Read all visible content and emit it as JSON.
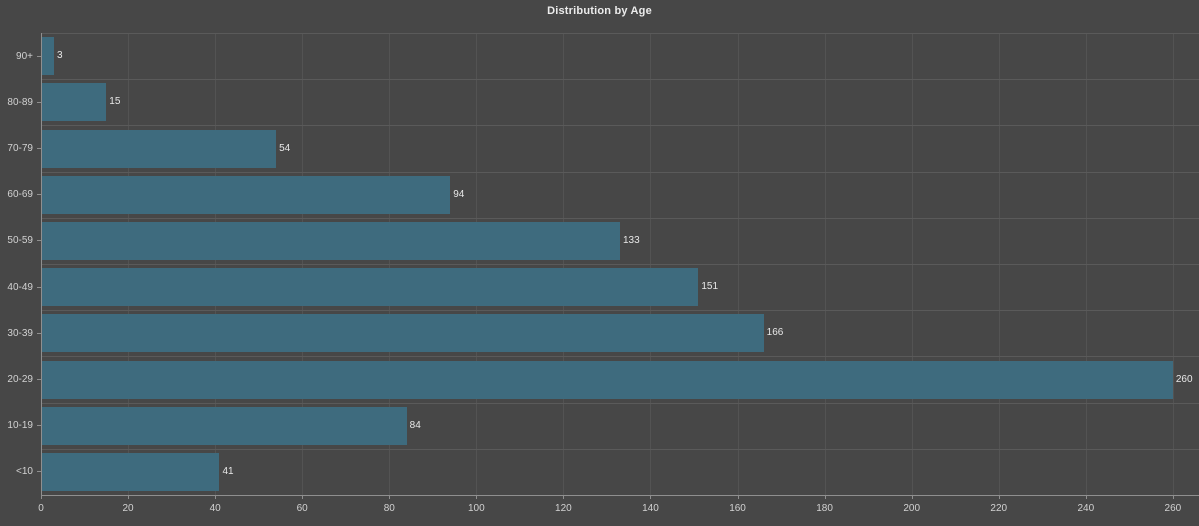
{
  "chart_data": {
    "type": "bar",
    "orientation": "horizontal",
    "title": "Distribution by Age",
    "categories": [
      "90+",
      "80-89",
      "70-79",
      "60-69",
      "50-59",
      "40-49",
      "30-39",
      "20-29",
      "10-19",
      "<10"
    ],
    "values": [
      3,
      15,
      54,
      94,
      133,
      151,
      166,
      260,
      84,
      41
    ],
    "value_labels": [
      "3",
      "15",
      "54",
      "94",
      "133",
      "151",
      "166",
      "260",
      "84",
      "41"
    ],
    "xlabel": "",
    "ylabel": "",
    "x_ticks": [
      0,
      20,
      40,
      60,
      80,
      100,
      120,
      140,
      160,
      180,
      200,
      220,
      240,
      260
    ],
    "xlim": [
      0,
      266
    ],
    "grid": true,
    "legend": "none",
    "colors": {
      "background": "#474747",
      "bar": "#3e6b7e",
      "gridline_vertical": "#535353",
      "gridline_horizontal": "#5a5a5a",
      "axis_line": "#8f8f8f",
      "tick_text": "#d2d2d2",
      "value_label_text": "#e8e8e8",
      "title_text": "#ececec"
    }
  }
}
